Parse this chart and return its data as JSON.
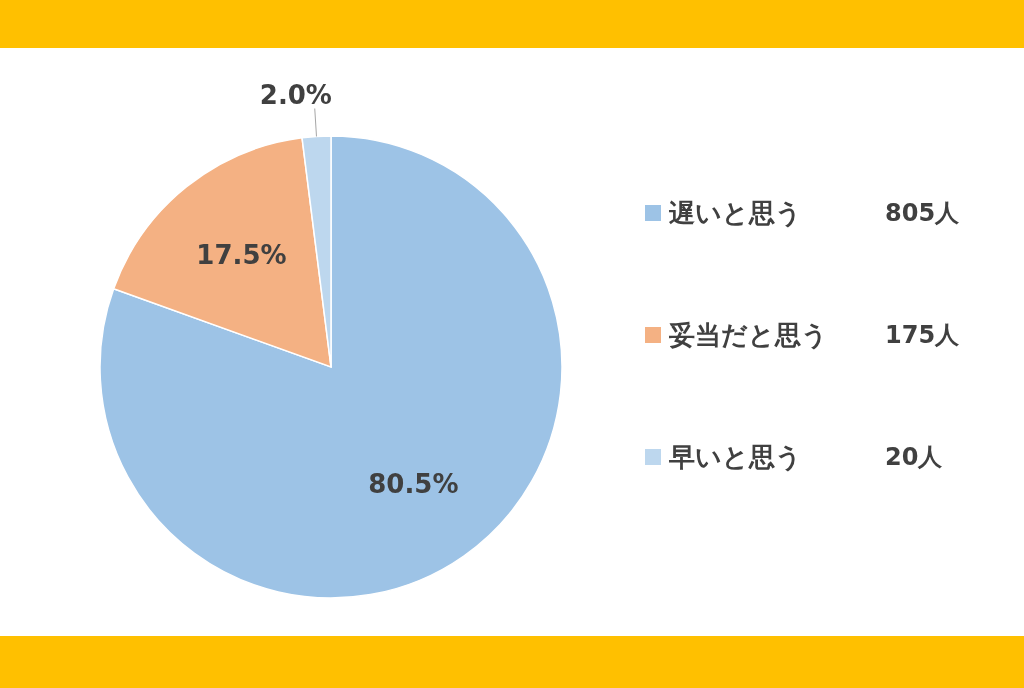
{
  "chart_data": {
    "type": "pie",
    "categories": [
      "遅いと思う",
      "妥当だと思う",
      "早いと思う"
    ],
    "values": [
      80.5,
      17.5,
      2.0
    ],
    "colors": [
      "#9dc3e6",
      "#f4b183",
      "#bdd7ee"
    ],
    "value_labels": [
      "80.5%",
      "17.5%",
      "2.0%"
    ],
    "annotations": [
      "805人",
      "175人",
      "20人"
    ],
    "legend": "right"
  }
}
